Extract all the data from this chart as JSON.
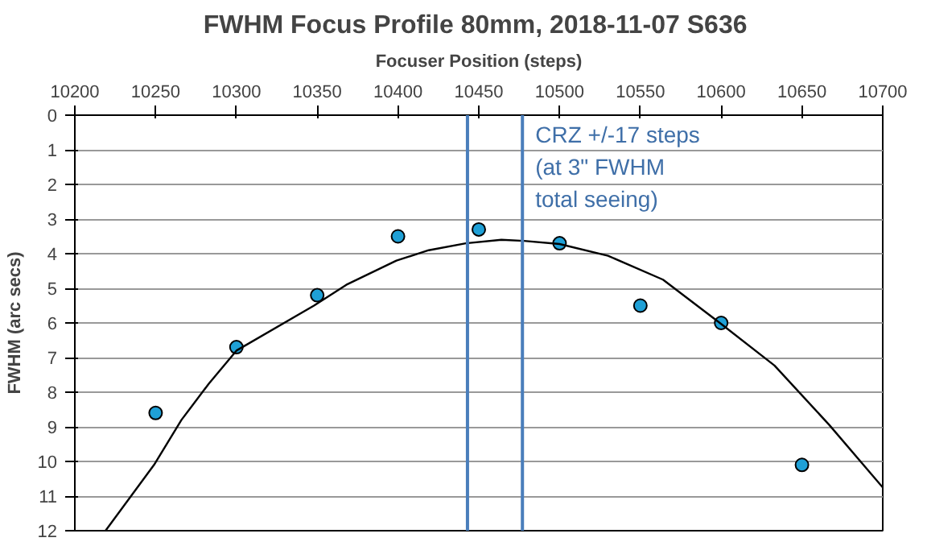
{
  "chart_data": {
    "type": "scatter",
    "title": "FWHM Focus Profile 80mm, 2018-11-07  S636",
    "xlabel": "Focuser Position (steps)",
    "ylabel": "FWHM (arc secs)",
    "x": [
      10250,
      10300,
      10350,
      10400,
      10450,
      10500,
      10550,
      10600,
      10650
    ],
    "series": [
      {
        "color": "#1fa0d6",
        "marker": "circle",
        "values": [
          8.6,
          6.7,
          5.2,
          3.5,
          3.3,
          3.7,
          5.5,
          6.0,
          10.1
        ]
      },
      {
        "type": "line",
        "color": "#000000",
        "line_style": "solid",
        "x": [
          10219,
          10249,
          10266,
          10283,
          10300,
          10348,
          10368,
          10399,
          10419,
          10442,
          10464,
          10478,
          10500,
          10530,
          10564,
          10600,
          10633,
          10667,
          10700
        ],
        "values": [
          12,
          10.1,
          8.8,
          7.75,
          6.8,
          5.5,
          4.9,
          4.2,
          3.9,
          3.7,
          3.6,
          3.63,
          3.72,
          4.06,
          4.75,
          6.03,
          7.23,
          8.95,
          10.75
        ]
      }
    ],
    "xlim": [
      10200,
      10700
    ],
    "xticks": [
      10200,
      10250,
      10300,
      10350,
      10400,
      10450,
      10500,
      10550,
      10600,
      10650,
      10700
    ],
    "ylim": [
      12,
      0
    ],
    "yticks": [
      0,
      1,
      2,
      3,
      4,
      5,
      6,
      7,
      8,
      9,
      10,
      11,
      12
    ],
    "ref_lines": [
      {
        "axis": "x",
        "value": 10443,
        "color": "#4a7ebb"
      },
      {
        "axis": "x",
        "value": 10477,
        "color": "#4a7ebb"
      }
    ],
    "annotations": [
      "CRZ +/-17 steps\n(at 3\" FWHM\ntotal seeing)"
    ],
    "grid": "y"
  }
}
